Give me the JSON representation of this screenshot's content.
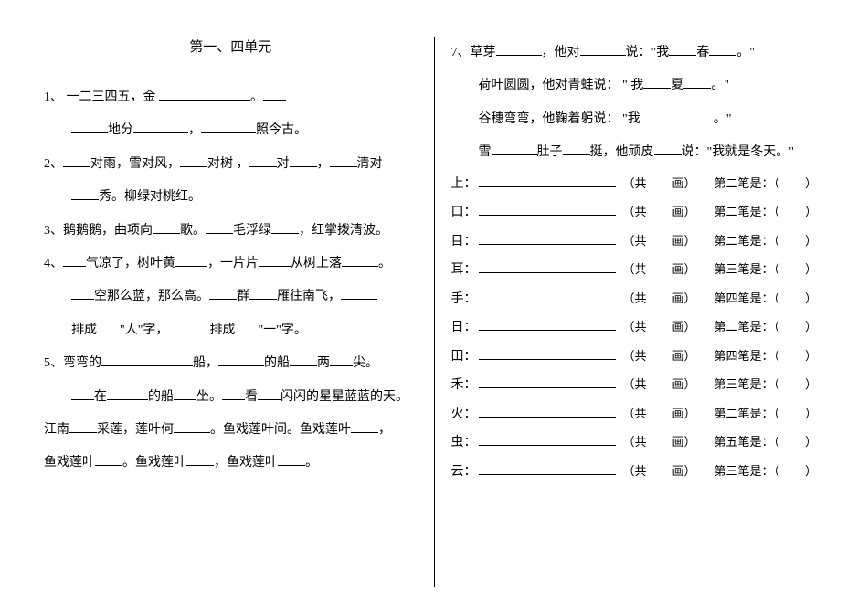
{
  "title": "第一、四单元",
  "left": {
    "q1_a": "1、 一二三四五，金 ",
    "q1_b": "。",
    "q1_c": "地分",
    "q1_d": "，",
    "q1_e": "照今古。",
    "q2_a": "2、",
    "q2_b": "对雨，雪对风，",
    "q2_c": "对树 ，",
    "q2_d": "对",
    "q2_e": "，",
    "q2_f": "清对",
    "q2_g": "秀。柳绿对桃红。",
    "q3_a": "3、鹅鹅鹅，曲项向",
    "q3_b": "歌。",
    "q3_c": "毛浮绿",
    "q3_d": "，红掌拨清波。",
    "q4_a": "4、",
    "q4_b": "气凉了，树叶黄",
    "q4_c": "，一片片",
    "q4_d": "从树上落",
    "q4_e": "。",
    "q4_f": "空那么蓝，那么高。",
    "q4_g": "群",
    "q4_h": "雁往南飞，",
    "q4_i": "排成",
    "q4_j": "\"人\"字，",
    "q4_k": "排成",
    "q4_l": "\"一\"字。",
    "q5_a": "5、弯弯的",
    "q5_b": "船，",
    "q5_c": "的船",
    "q5_d": "两",
    "q5_e": "尖。",
    "q5_f": "在",
    "q5_g": "的船",
    "q5_h": "坐。",
    "q5_i": "看",
    "q5_j": "闪闪的星星蓝蓝的天。",
    "q6_a": "江南",
    "q6_b": "采莲，莲叶何",
    "q6_c": "。鱼戏莲叶间。鱼戏莲叶",
    "q6_d": "，",
    "q6_e": "鱼戏莲叶",
    "q6_f": "。鱼戏莲叶",
    "q6_g": "，鱼戏莲叶",
    "q6_h": "。"
  },
  "right": {
    "q7_a": "7、草芽",
    "q7_b": "，他对",
    "q7_c": "说：\"我",
    "q7_d": "春",
    "q7_e": "。\"",
    "q7_f": "荷叶圆圆，他对青蛙说： \" 我",
    "q7_g": "夏",
    "q7_h": "。\"",
    "q7_i": "谷穗弯弯，他鞠着躬说： \"我",
    "q7_j": "。\"",
    "q7_k": "雪",
    "q7_l": "肚子",
    "q7_m": "挺，他顽皮",
    "q7_n": "说：\"我就是冬天。\""
  },
  "strokes": [
    {
      "char": "上：",
      "note": "（共",
      "hua": "画）",
      "which": "第二笔是：（",
      "close": "）"
    },
    {
      "char": "口：",
      "note": "（共",
      "hua": "画）",
      "which": "第二笔是：（",
      "close": "）"
    },
    {
      "char": "目：",
      "note": "（共",
      "hua": "画）",
      "which": "第二笔是：（",
      "close": "）"
    },
    {
      "char": "耳：",
      "note": "（共",
      "hua": "画）",
      "which": "第三笔是：（",
      "close": "）"
    },
    {
      "char": "手：",
      "note": "（共",
      "hua": "画）",
      "which": "第四笔是：（",
      "close": "）"
    },
    {
      "char": "日：",
      "note": "（共",
      "hua": "画）",
      "which": "第二笔是：（",
      "close": "）"
    },
    {
      "char": "田：",
      "note": "（共",
      "hua": "画）",
      "which": "第四笔是：（",
      "close": "）"
    },
    {
      "char": "禾：",
      "note": "（共",
      "hua": "画）",
      "which": "第三笔是：（",
      "close": "）"
    },
    {
      "char": "火：",
      "note": "（共",
      "hua": "画）",
      "which": "第二笔是：（",
      "close": "）"
    },
    {
      "char": "虫：",
      "note": "（共",
      "hua": "画）",
      "which": "第五笔是：（",
      "close": "）"
    },
    {
      "char": "云：",
      "note": "（共",
      "hua": "画）",
      "which": "第三笔是：（",
      "close": "）"
    }
  ]
}
